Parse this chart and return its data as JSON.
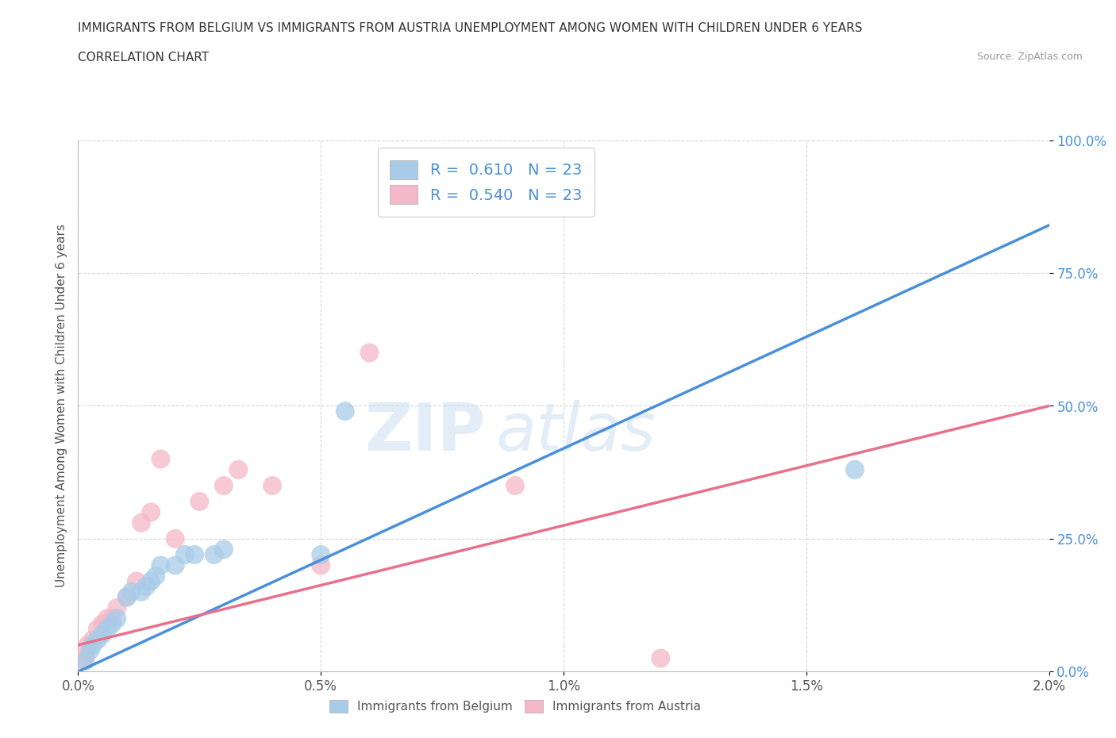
{
  "title_line1": "IMMIGRANTS FROM BELGIUM VS IMMIGRANTS FROM AUSTRIA UNEMPLOYMENT AMONG WOMEN WITH CHILDREN UNDER 6 YEARS",
  "title_line2": "CORRELATION CHART",
  "source": "Source: ZipAtlas.com",
  "ylabel": "Unemployment Among Women with Children Under 6 years",
  "xlim": [
    0.0,
    0.02
  ],
  "ylim": [
    0.0,
    1.0
  ],
  "xtick_labels": [
    "0.0%",
    "0.5%",
    "1.0%",
    "1.5%",
    "2.0%"
  ],
  "xtick_values": [
    0.0,
    0.005,
    0.01,
    0.015,
    0.02
  ],
  "ytick_labels": [
    "0.0%",
    "25.0%",
    "50.0%",
    "75.0%",
    "100.0%"
  ],
  "ytick_values": [
    0.0,
    0.25,
    0.5,
    0.75,
    1.0
  ],
  "belgium_color": "#a8cce8",
  "austria_color": "#f5b8c8",
  "regression_belgium_color": "#4a90d9",
  "regression_austria_color": "#e8708a",
  "watermark_zip": "ZIP",
  "watermark_atlas": "atlas",
  "R_belgium": 0.61,
  "R_austria": 0.54,
  "N_belgium": 23,
  "N_austria": 23,
  "legend_label1": "Immigrants from Belgium",
  "legend_label2": "Immigrants from Austria",
  "belgium_x": [
    0.00015,
    0.00025,
    0.0003,
    0.0004,
    0.0005,
    0.0006,
    0.0007,
    0.0008,
    0.001,
    0.0011,
    0.0013,
    0.0014,
    0.0015,
    0.0016,
    0.0017,
    0.002,
    0.0022,
    0.0024,
    0.0028,
    0.003,
    0.005,
    0.0055,
    0.016
  ],
  "belgium_y": [
    0.02,
    0.04,
    0.05,
    0.06,
    0.07,
    0.08,
    0.09,
    0.1,
    0.14,
    0.15,
    0.15,
    0.16,
    0.17,
    0.18,
    0.2,
    0.2,
    0.22,
    0.22,
    0.22,
    0.23,
    0.22,
    0.49,
    0.38
  ],
  "austria_x": [
    0.0001,
    0.00015,
    0.0002,
    0.0003,
    0.0004,
    0.0005,
    0.0006,
    0.0007,
    0.0008,
    0.001,
    0.0012,
    0.0013,
    0.0015,
    0.0017,
    0.002,
    0.0025,
    0.003,
    0.0033,
    0.004,
    0.005,
    0.006,
    0.009,
    0.012
  ],
  "austria_y": [
    0.02,
    0.03,
    0.05,
    0.06,
    0.08,
    0.09,
    0.1,
    0.1,
    0.12,
    0.14,
    0.17,
    0.28,
    0.3,
    0.4,
    0.25,
    0.32,
    0.35,
    0.38,
    0.35,
    0.2,
    0.6,
    0.35,
    0.025
  ],
  "background_color": "#ffffff",
  "grid_color": "#d8d8d8",
  "ytick_color": "#4a90d9",
  "xtick_color": "#555555"
}
